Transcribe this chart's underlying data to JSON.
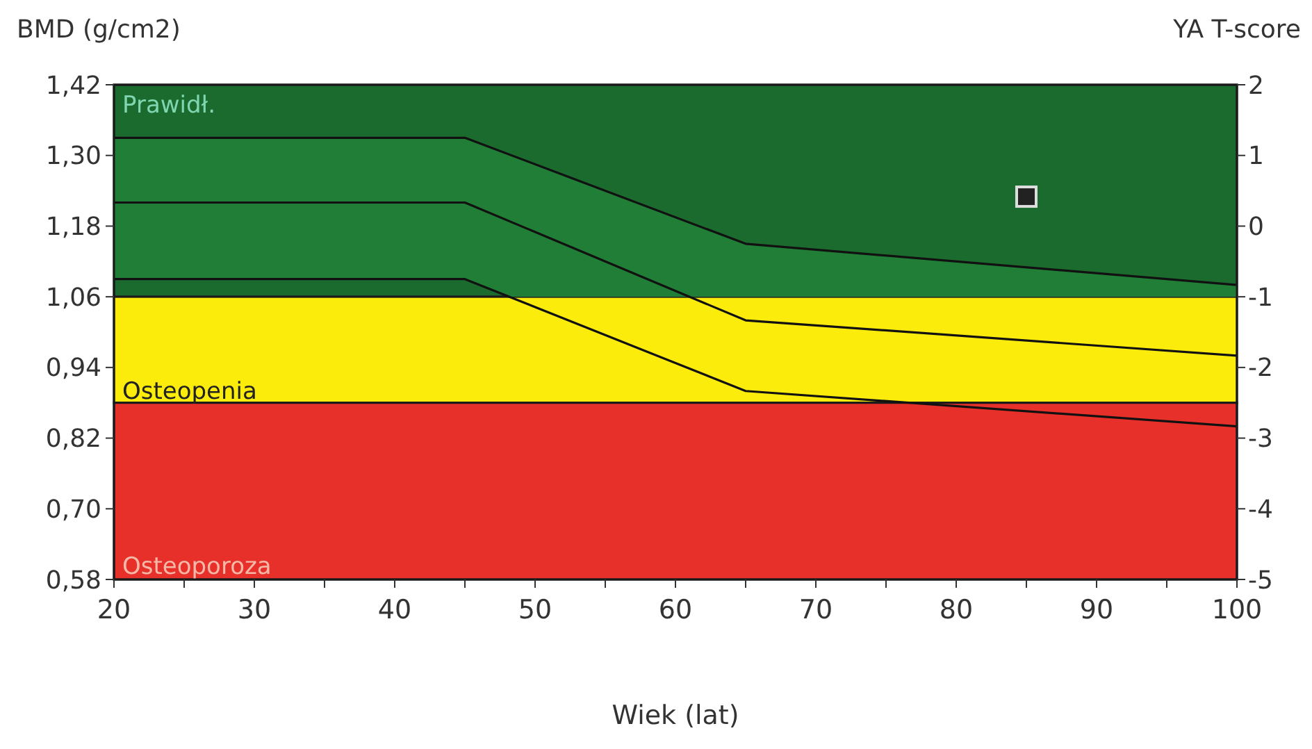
{
  "chart_data": {
    "type": "line",
    "xlabel": "Wiek (lat)",
    "ylabel": "BMD (g/cm2)",
    "y2label": "YA T-score",
    "xlim": [
      20,
      100
    ],
    "xticks": [
      20,
      {
        "value": 25,
        "label": null
      },
      30,
      {
        "value": 35,
        "label": null
      },
      40,
      {
        "value": 45,
        "label": null
      },
      50,
      {
        "value": 55,
        "label": null
      },
      60,
      {
        "value": 65,
        "label": null
      },
      70,
      {
        "value": 75,
        "label": null
      },
      80,
      {
        "value": 85,
        "label": null
      },
      90,
      {
        "value": 95,
        "label": null
      },
      100
    ],
    "ylim": [
      0.58,
      1.42
    ],
    "yticks": [
      {
        "value": 0.58,
        "label": "0,58"
      },
      {
        "value": 0.7,
        "label": "0,70"
      },
      {
        "value": 0.82,
        "label": "0,82"
      },
      {
        "value": 0.94,
        "label": "0,94"
      },
      {
        "value": 1.06,
        "label": "1,06"
      },
      {
        "value": 1.18,
        "label": "1,18"
      },
      {
        "value": 1.3,
        "label": "1,30"
      },
      {
        "value": 1.42,
        "label": "1,42"
      }
    ],
    "y2lim": [
      -5,
      2
    ],
    "y2ticks": [
      -5,
      -4,
      -3,
      -2,
      -1,
      0,
      1,
      2
    ],
    "bands": [
      {
        "axis": "y",
        "from": 1.06,
        "to": 1.42,
        "label": "Prawidł.",
        "color": "#1b6b2f"
      },
      {
        "axis": "y",
        "from": 0.88,
        "to": 1.06,
        "label": "Osteopenia",
        "color": "#fcec0c"
      },
      {
        "axis": "y",
        "from": 0.58,
        "to": 0.88,
        "label": "Osteoporoza",
        "color": "#e8302a"
      }
    ],
    "series": [
      {
        "color": "#111111",
        "x": [
          20,
          45,
          65,
          100
        ],
        "values": [
          1.33,
          1.33,
          1.15,
          1.08
        ]
      },
      {
        "color": "#111111",
        "x": [
          20,
          45,
          65,
          100
        ],
        "values": [
          1.22,
          1.22,
          1.02,
          0.96
        ],
        "lower": [
          1.09,
          1.09,
          0.9,
          0.84
        ],
        "upper": [
          1.33,
          1.33,
          1.15,
          1.08
        ]
      },
      {
        "color": "#111111",
        "x": [
          20,
          45,
          65,
          100
        ],
        "values": [
          1.09,
          1.09,
          0.9,
          0.84
        ]
      },
      {
        "type": "scatter",
        "marker": "square",
        "color": "#222222",
        "x": [
          85
        ],
        "values": [
          1.23
        ]
      }
    ],
    "grid": false,
    "line_style": "solid",
    "marker": "none"
  }
}
